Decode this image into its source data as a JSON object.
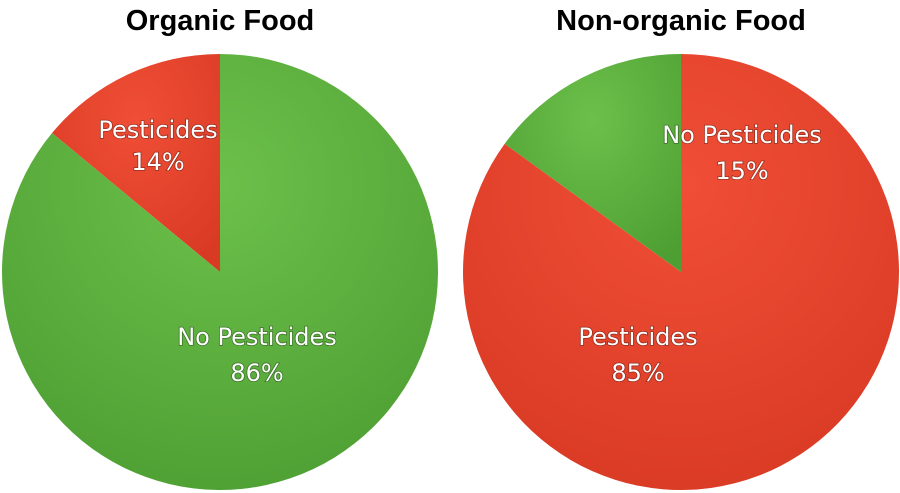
{
  "colors": {
    "green": "#5fb23f",
    "red": "#e8412c"
  },
  "chart_data": [
    {
      "type": "pie",
      "title": "Organic Food",
      "slices": [
        {
          "label": "Pesticides",
          "value": 14,
          "value_label": "14%",
          "color": "#e8412c"
        },
        {
          "label": "No Pesticides",
          "value": 86,
          "value_label": "86%",
          "color": "#5fb23f"
        }
      ]
    },
    {
      "type": "pie",
      "title": "Non-organic Food",
      "slices": [
        {
          "label": "No Pesticides",
          "value": 15,
          "value_label": "15%",
          "color": "#5fb23f"
        },
        {
          "label": "Pesticides",
          "value": 85,
          "value_label": "85%",
          "color": "#e8412c"
        }
      ]
    }
  ]
}
